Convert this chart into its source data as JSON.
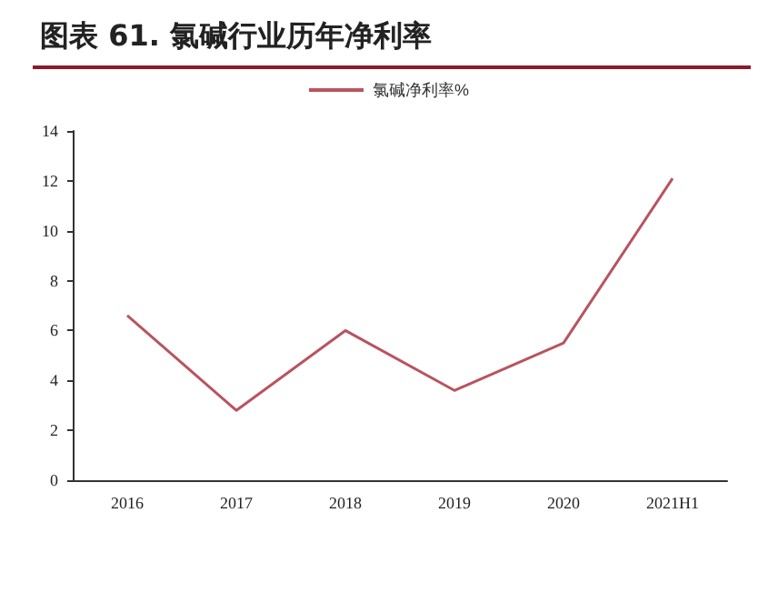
{
  "chart_data": {
    "type": "line",
    "title": "图表 61. 氯碱行业历年净利率",
    "categories": [
      "2016",
      "2017",
      "2018",
      "2019",
      "2020",
      "2021H1"
    ],
    "series": [
      {
        "name": "氯碱净利率%",
        "color": "#b85460",
        "values": [
          6.6,
          2.8,
          6.0,
          3.6,
          5.5,
          12.1
        ]
      }
    ],
    "ylim": [
      0,
      14
    ],
    "yticks": [
      0,
      2,
      4,
      6,
      8,
      10,
      12,
      14
    ],
    "grid": false,
    "legend": "top",
    "marker": "none",
    "line_style": "solid"
  }
}
